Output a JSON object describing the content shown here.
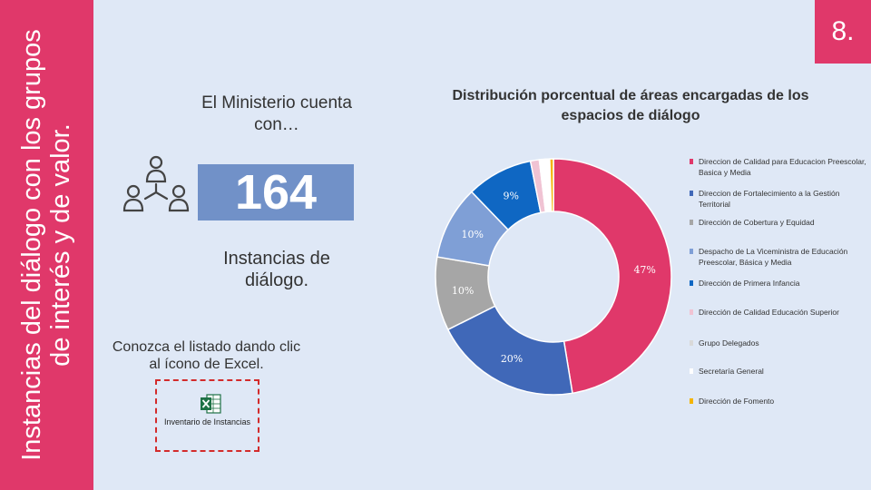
{
  "sidebar": {
    "title": "Instancias del diálogo con los grupos de interés y de valor."
  },
  "page_number": "8.",
  "summary": {
    "intro": "El Ministerio cuenta con…",
    "count": "164",
    "count_label": "Instancias de diálogo.",
    "excel_instruction": "Conozca el listado dando clic al ícono de Excel.",
    "excel_file_label": "Inventario de Instancias"
  },
  "icons": {
    "people": "people-network-icon",
    "excel": "excel-file-icon"
  },
  "colors": {
    "accent": "#e0386a",
    "background": "#dfe8f6",
    "count_box": "#7191c8"
  },
  "chart_data": {
    "type": "pie",
    "title": "Distribución porcentual de áreas encargadas de los espacios de diálogo",
    "series": [
      {
        "name": "Direccion de Calidad para Educacion Preescolar, Basica y Media",
        "value": 47,
        "label": "47%",
        "color": "#e0386a"
      },
      {
        "name": "Direccion de Fortalecimiento a la Gestión Territorial",
        "value": 20,
        "label": "20%",
        "color": "#4068b8"
      },
      {
        "name": "Dirección de Cobertura y Equidad",
        "value": 10,
        "label": "10%",
        "color": "#a6a6a6"
      },
      {
        "name": "Despacho de La Viceministra de Educación Preescolar, Básica y Media",
        "value": 10,
        "label": "10%",
        "color": "#7f9fd6"
      },
      {
        "name": "Dirección de Primera Infancia",
        "value": 9,
        "label": "9%",
        "color": "#0f67c3"
      },
      {
        "name": "Dirección de Calidad Educación Superior",
        "value": 1.2,
        "label": "",
        "color": "#f0c3d3"
      },
      {
        "name": "Grupo Delegados",
        "value": 0.8,
        "label": "",
        "color": "#ffffff"
      },
      {
        "name": "Secretaría General",
        "value": 0.6,
        "label": "",
        "color": "#ffffff"
      },
      {
        "name": "Dirección de Fomento",
        "value": 0.5,
        "label": "",
        "color": "#f4b400"
      }
    ],
    "legend_order": [
      "Direccion de Calidad para Educacion Preescolar, Basica y Media",
      "Direccion de Fortalecimiento a la Gestión Territorial",
      "Dirección de Cobertura y Equidad",
      "Despacho de La Viceministra de Educación Preescolar, Básica y Media",
      "Dirección de Primera Infancia",
      "Dirección de Calidad Educación Superior",
      "Grupo Delegados",
      "Secretaría General",
      "Dirección de Fomento"
    ],
    "legend_swatch_colors": [
      "#e0386a",
      "#4068b8",
      "#a6a6a6",
      "#7f9fd6",
      "#0f67c3",
      "#f0c3d3",
      "#d9d9d9",
      "#ffffff",
      "#f4b400"
    ],
    "legend_position": "right"
  }
}
